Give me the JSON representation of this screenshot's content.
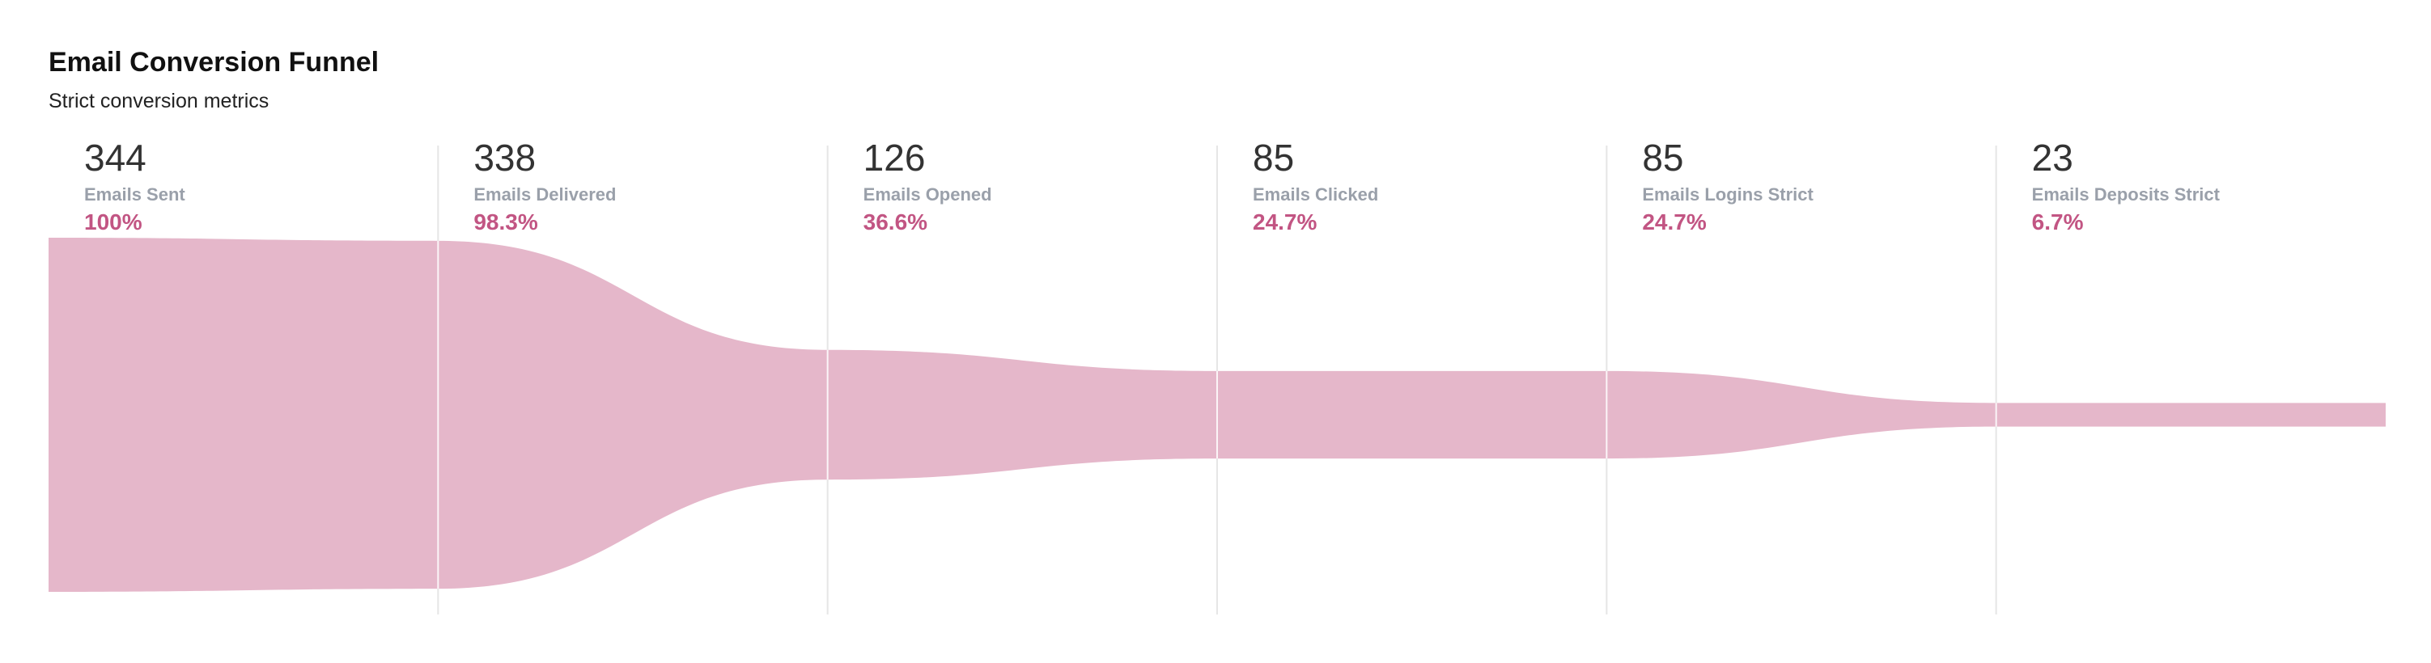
{
  "header": {
    "title": "Email Conversion Funnel",
    "subtitle": "Strict conversion metrics"
  },
  "colors": {
    "funnel_fill": "#e5b7ca",
    "percent_text": "#c25583",
    "label_text": "#9aa0aa",
    "value_text": "#333333",
    "divider": "#e6e6e6"
  },
  "chart_data": {
    "type": "funnel",
    "title": "Email Conversion Funnel",
    "subtitle": "Strict conversion metrics",
    "categories": [
      "Emails Sent",
      "Emails Delivered",
      "Emails Opened",
      "Emails Clicked",
      "Emails Logins Strict",
      "Emails Deposits Strict"
    ],
    "values": [
      344,
      338,
      126,
      85,
      85,
      23
    ],
    "percent_labels": [
      "100%",
      "98.3%",
      "36.6%",
      "24.7%",
      "24.7%",
      "6.7%"
    ],
    "percentages": [
      100,
      98.3,
      36.6,
      24.7,
      24.7,
      6.7
    ],
    "value_labels": [
      "344",
      "338",
      "126",
      "85",
      "85",
      "23"
    ]
  }
}
